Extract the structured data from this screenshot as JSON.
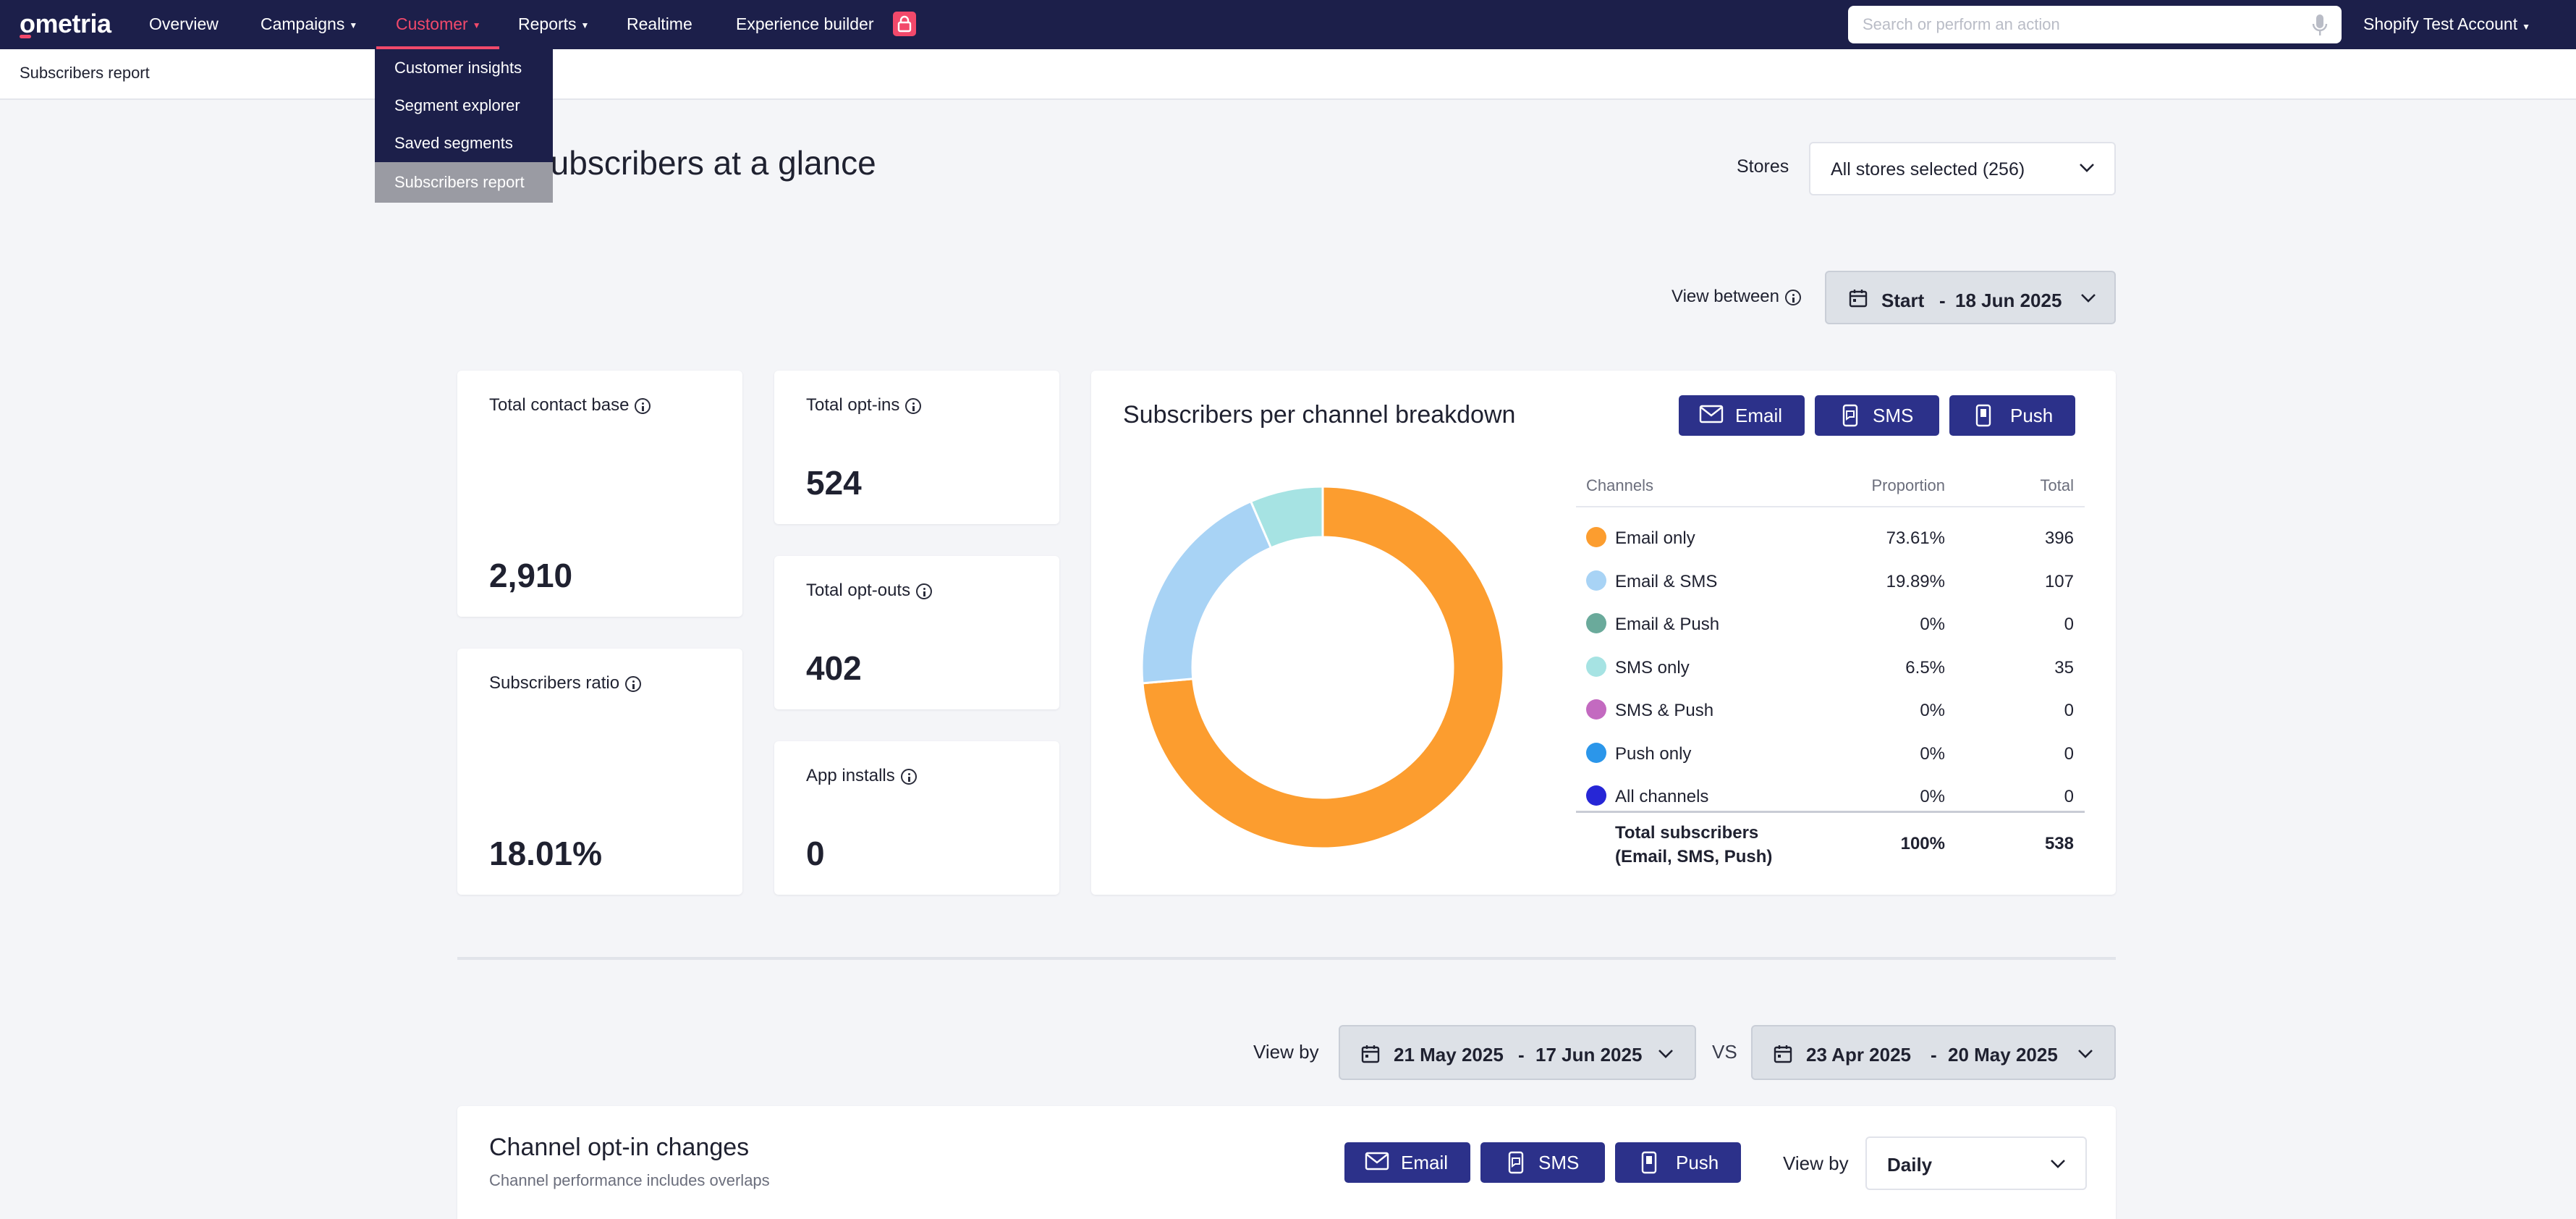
{
  "nav": {
    "logo": "ometria",
    "items": [
      {
        "label": "Overview",
        "caret": false
      },
      {
        "label": "Campaigns",
        "caret": true
      },
      {
        "label": "Customer",
        "caret": true,
        "active": true
      },
      {
        "label": "Reports",
        "caret": true
      },
      {
        "label": "Realtime",
        "caret": false
      },
      {
        "label": "Experience builder",
        "caret": false,
        "badge": "lock-icon"
      }
    ],
    "search_placeholder": "Search or perform an action",
    "account": "Shopify Test Account"
  },
  "customer_menu": [
    "Customer insights",
    "Segment explorer",
    "Saved segments",
    "Subscribers report"
  ],
  "breadcrumb": "Subscribers report",
  "page_title": "Subscribers at a glance",
  "stores": {
    "label": "Stores",
    "selected": "All stores selected (256)"
  },
  "view_between": {
    "label": "View between",
    "start": "Start",
    "sep": "-",
    "end": "18 Jun 2025"
  },
  "metrics": {
    "total_contact_base": {
      "label": "Total contact base",
      "value": "2,910"
    },
    "subscribers_ratio": {
      "label": "Subscribers ratio",
      "value": "18.01%"
    },
    "total_optins": {
      "label": "Total opt-ins",
      "value": "524"
    },
    "total_optouts": {
      "label": "Total opt-outs",
      "value": "402"
    },
    "app_installs": {
      "label": "App installs",
      "value": "0"
    }
  },
  "breakdown": {
    "title": "Subscribers per channel breakdown",
    "buttons": [
      "Email",
      "SMS",
      "Push"
    ],
    "columns": {
      "channels": "Channels",
      "proportion": "Proportion",
      "total": "Total"
    },
    "rows": [
      {
        "name": "Email only",
        "proportion": "73.61%",
        "total": "396",
        "color": "#fc9d2f"
      },
      {
        "name": "Email & SMS",
        "proportion": "19.89%",
        "total": "107",
        "color": "#a8d3f5"
      },
      {
        "name": "Email & Push",
        "proportion": "0%",
        "total": "0",
        "color": "#6aaa9b"
      },
      {
        "name": "SMS only",
        "proportion": "6.5%",
        "total": "35",
        "color": "#a6e3e3"
      },
      {
        "name": "SMS & Push",
        "proportion": "0%",
        "total": "0",
        "color": "#c36ac0"
      },
      {
        "name": "Push only",
        "proportion": "0%",
        "total": "0",
        "color": "#2b96ea"
      },
      {
        "name": "All channels",
        "proportion": "0%",
        "total": "0",
        "color": "#2626d6"
      }
    ],
    "total": {
      "line1": "Total subscribers",
      "line2": "(Email, SMS, Push)",
      "proportion": "100%",
      "total": "538"
    }
  },
  "chart_data": {
    "type": "pie",
    "donut": true,
    "categories": [
      "Email only",
      "Email & SMS",
      "Email & Push",
      "SMS only",
      "SMS & Push",
      "Push only",
      "All channels"
    ],
    "values": [
      396,
      107,
      0,
      35,
      0,
      0,
      0
    ],
    "colors": [
      "#fc9d2f",
      "#a8d3f5",
      "#6aaa9b",
      "#a6e3e3",
      "#c36ac0",
      "#2b96ea",
      "#2626d6"
    ]
  },
  "compare": {
    "view_by_label": "View by",
    "range_a": {
      "from": "21 May 2025",
      "sep": "-",
      "to": "17 Jun 2025"
    },
    "vs": "VS",
    "range_b": {
      "from": "23 Apr 2025",
      "sep": "-",
      "to": "20 May 2025"
    }
  },
  "optin": {
    "title": "Channel opt-in changes",
    "subtitle": "Channel performance includes overlaps",
    "buttons": [
      "Email",
      "SMS",
      "Push"
    ],
    "view_by_label": "View by",
    "view_by_value": "Daily"
  }
}
